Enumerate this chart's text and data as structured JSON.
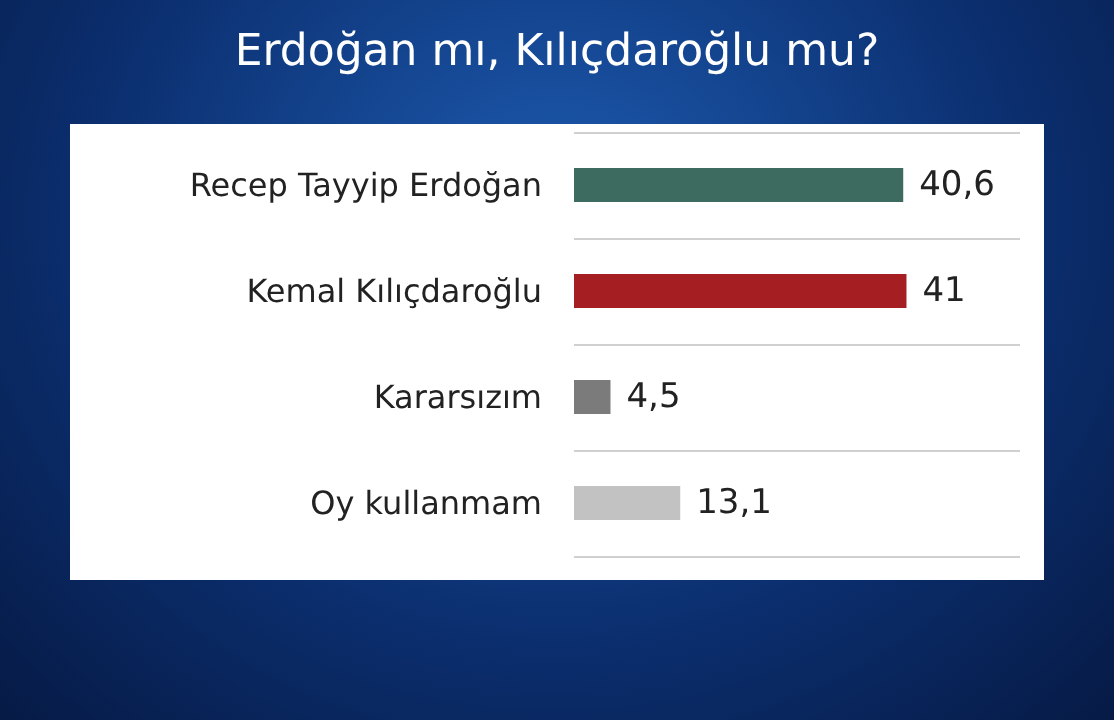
{
  "chart_data": {
    "type": "bar",
    "orientation": "horizontal",
    "title": "Erdoğan mı, Kılıçdaroğlu mu?",
    "categories": [
      "Recep Tayyip Erdoğan",
      "Kemal Kılıçdaroğlu",
      "Kararsızım",
      "Oy kullanmam"
    ],
    "values": [
      40.6,
      41,
      4.5,
      13.1
    ],
    "colors": [
      "#3e6b60",
      "#a51e22",
      "#7b7b7b",
      "#c2c2c2"
    ],
    "value_labels": [
      "40,6",
      "41",
      "4,5",
      "13,1"
    ],
    "xlim": [
      0,
      55
    ],
    "tick_labels": "y",
    "grid": "y"
  }
}
